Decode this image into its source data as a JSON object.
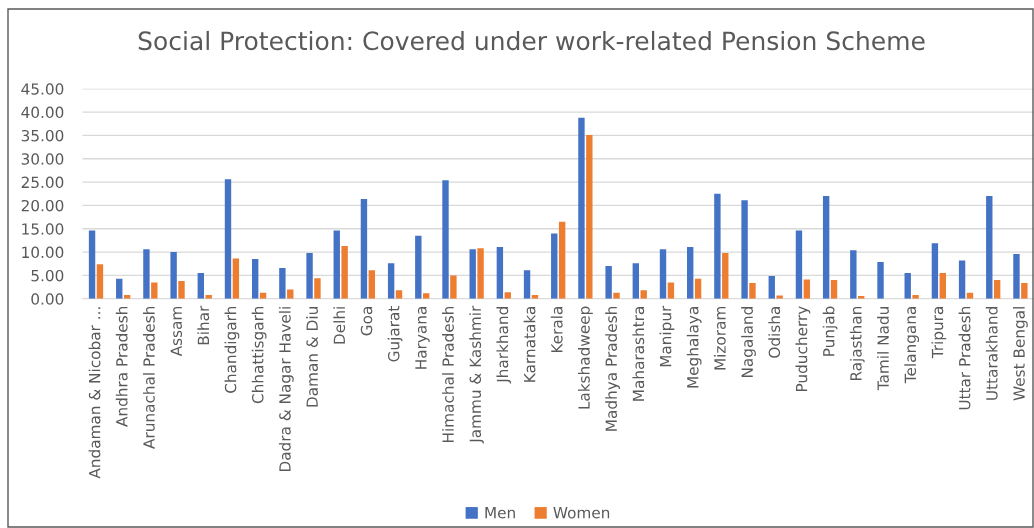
{
  "chart_data": {
    "type": "bar",
    "title": "Social Protection: Covered under work-related Pension Scheme",
    "categories": [
      "Andaman & Nicobar ...",
      "Andhra Pradesh",
      "Arunachal Pradesh",
      "Assam",
      "Bihar",
      "Chandigarh",
      "Chhattisgarh",
      "Dadra & Nagar Haveli",
      "Daman & Diu",
      "Delhi",
      "Goa",
      "Gujarat",
      "Haryana",
      "Himachal Pradesh",
      "Jammu & Kashmir",
      "Jharkhand",
      "Karnataka",
      "Kerala",
      "Lakshadweep",
      "Madhya Pradesh",
      "Maharashtra",
      "Manipur",
      "Meghalaya",
      "Mizoram",
      "Nagaland",
      "Odisha",
      "Puducherry",
      "Punjab",
      "Rajasthan",
      "Tamil Nadu",
      "Telangana",
      "Tripura",
      "Uttar Pradesh",
      "Uttarakhand",
      "West Bengal"
    ],
    "series": [
      {
        "name": "Men",
        "color": "#4472c4",
        "values": [
          14.6,
          4.3,
          10.6,
          10.0,
          5.5,
          25.6,
          8.5,
          6.6,
          9.8,
          14.6,
          21.4,
          7.6,
          13.5,
          25.4,
          10.6,
          11.1,
          6.1,
          14.0,
          38.8,
          7.0,
          7.6,
          10.6,
          11.1,
          22.5,
          21.1,
          4.9,
          14.6,
          22.0,
          10.4,
          7.9,
          5.5,
          11.9,
          8.2,
          22.0,
          9.6
        ]
      },
      {
        "name": "Women",
        "color": "#ed7d31",
        "values": [
          7.4,
          0.8,
          3.5,
          3.8,
          0.8,
          8.6,
          1.3,
          2.0,
          4.4,
          11.3,
          6.1,
          1.8,
          1.2,
          5.0,
          10.8,
          1.4,
          0.8,
          16.5,
          35.1,
          1.3,
          1.8,
          3.5,
          4.3,
          9.8,
          3.4,
          0.7,
          4.1,
          4.0,
          0.6,
          null,
          0.8,
          5.5,
          1.3,
          4.0,
          3.4
        ]
      }
    ],
    "ylim": [
      0,
      45
    ],
    "yticks": [
      {
        "value": 0,
        "label": "0.00"
      },
      {
        "value": 5,
        "label": "5.00"
      },
      {
        "value": 10,
        "label": "10.00"
      },
      {
        "value": 15,
        "label": "15.00"
      },
      {
        "value": 20,
        "label": "20.00"
      },
      {
        "value": 25,
        "label": "25.00"
      },
      {
        "value": 30,
        "label": "30.00"
      },
      {
        "value": 35,
        "label": "35.00"
      },
      {
        "value": 40,
        "label": "40.00"
      },
      {
        "value": 45,
        "label": "45.00"
      }
    ],
    "grid": "y",
    "legend": "bottom"
  }
}
